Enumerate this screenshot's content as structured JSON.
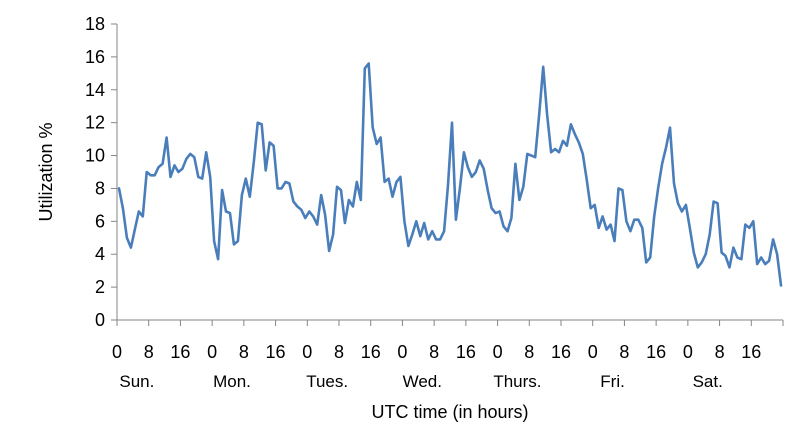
{
  "chart_data": {
    "type": "line",
    "title": "",
    "xlabel": "UTC time (in hours)",
    "ylabel": "Utilization %",
    "ylim": [
      0,
      18
    ],
    "y_ticks": [
      0,
      2,
      4,
      6,
      8,
      10,
      12,
      14,
      16,
      18
    ],
    "x_hour_ticks": [
      "0",
      "8",
      "16"
    ],
    "days": [
      "Sun.",
      "Mon.",
      "Tues.",
      "Wed.",
      "Thurs.",
      "Fri.",
      "Sat."
    ],
    "grid": false,
    "legend": "none",
    "line_color": "#4a7ebb",
    "series": [
      {
        "values": [
          8.0,
          6.8,
          5.0,
          4.4,
          5.5,
          6.6,
          6.3,
          9.0,
          8.8,
          8.8,
          9.3,
          9.5,
          11.1,
          8.7,
          9.4,
          9.0,
          9.2,
          9.8,
          10.1,
          9.9,
          8.7,
          8.6,
          10.2,
          8.7,
          4.8,
          3.7,
          7.9,
          6.6,
          6.5,
          4.6,
          4.8,
          7.6,
          8.6,
          7.5,
          9.6,
          12.0,
          11.9,
          9.1,
          10.8,
          10.6,
          8.0,
          8.0,
          8.4,
          8.3,
          7.2,
          6.9,
          6.7,
          6.2,
          6.6,
          6.3,
          5.8,
          7.6,
          6.4,
          4.2,
          5.2,
          8.1,
          7.9,
          5.9,
          7.3,
          6.9,
          8.4,
          7.3,
          15.3,
          15.6,
          11.7,
          10.7,
          11.1,
          8.4,
          8.6,
          7.5,
          8.4,
          8.7,
          6.0,
          4.5,
          5.2,
          6.0,
          5.1,
          5.9,
          4.9,
          5.4,
          4.9,
          4.9,
          5.4,
          8.2,
          12.0,
          6.1,
          8.0,
          10.2,
          9.3,
          8.7,
          9.0,
          9.7,
          9.2,
          7.9,
          6.8,
          6.5,
          6.6,
          5.7,
          5.4,
          6.2,
          9.5,
          7.3,
          8.1,
          10.1,
          10.0,
          9.9,
          12.5,
          15.4,
          12.5,
          10.2,
          10.4,
          10.2,
          10.9,
          10.6,
          11.9,
          11.3,
          10.8,
          10.1,
          8.5,
          6.8,
          7.0,
          5.6,
          6.3,
          5.5,
          5.8,
          4.8,
          8.0,
          7.9,
          6.0,
          5.4,
          6.1,
          6.1,
          5.6,
          3.5,
          3.8,
          6.3,
          8.0,
          9.5,
          10.5,
          11.7,
          8.3,
          7.1,
          6.6,
          7.0,
          5.6,
          4.1,
          3.2,
          3.5,
          4.0,
          5.2,
          7.2,
          7.1,
          4.1,
          3.9,
          3.2,
          4.4,
          3.8,
          3.7,
          5.8,
          5.6,
          6.0,
          3.4,
          3.8,
          3.4,
          3.6,
          4.9,
          4.0,
          2.1
        ]
      }
    ]
  }
}
